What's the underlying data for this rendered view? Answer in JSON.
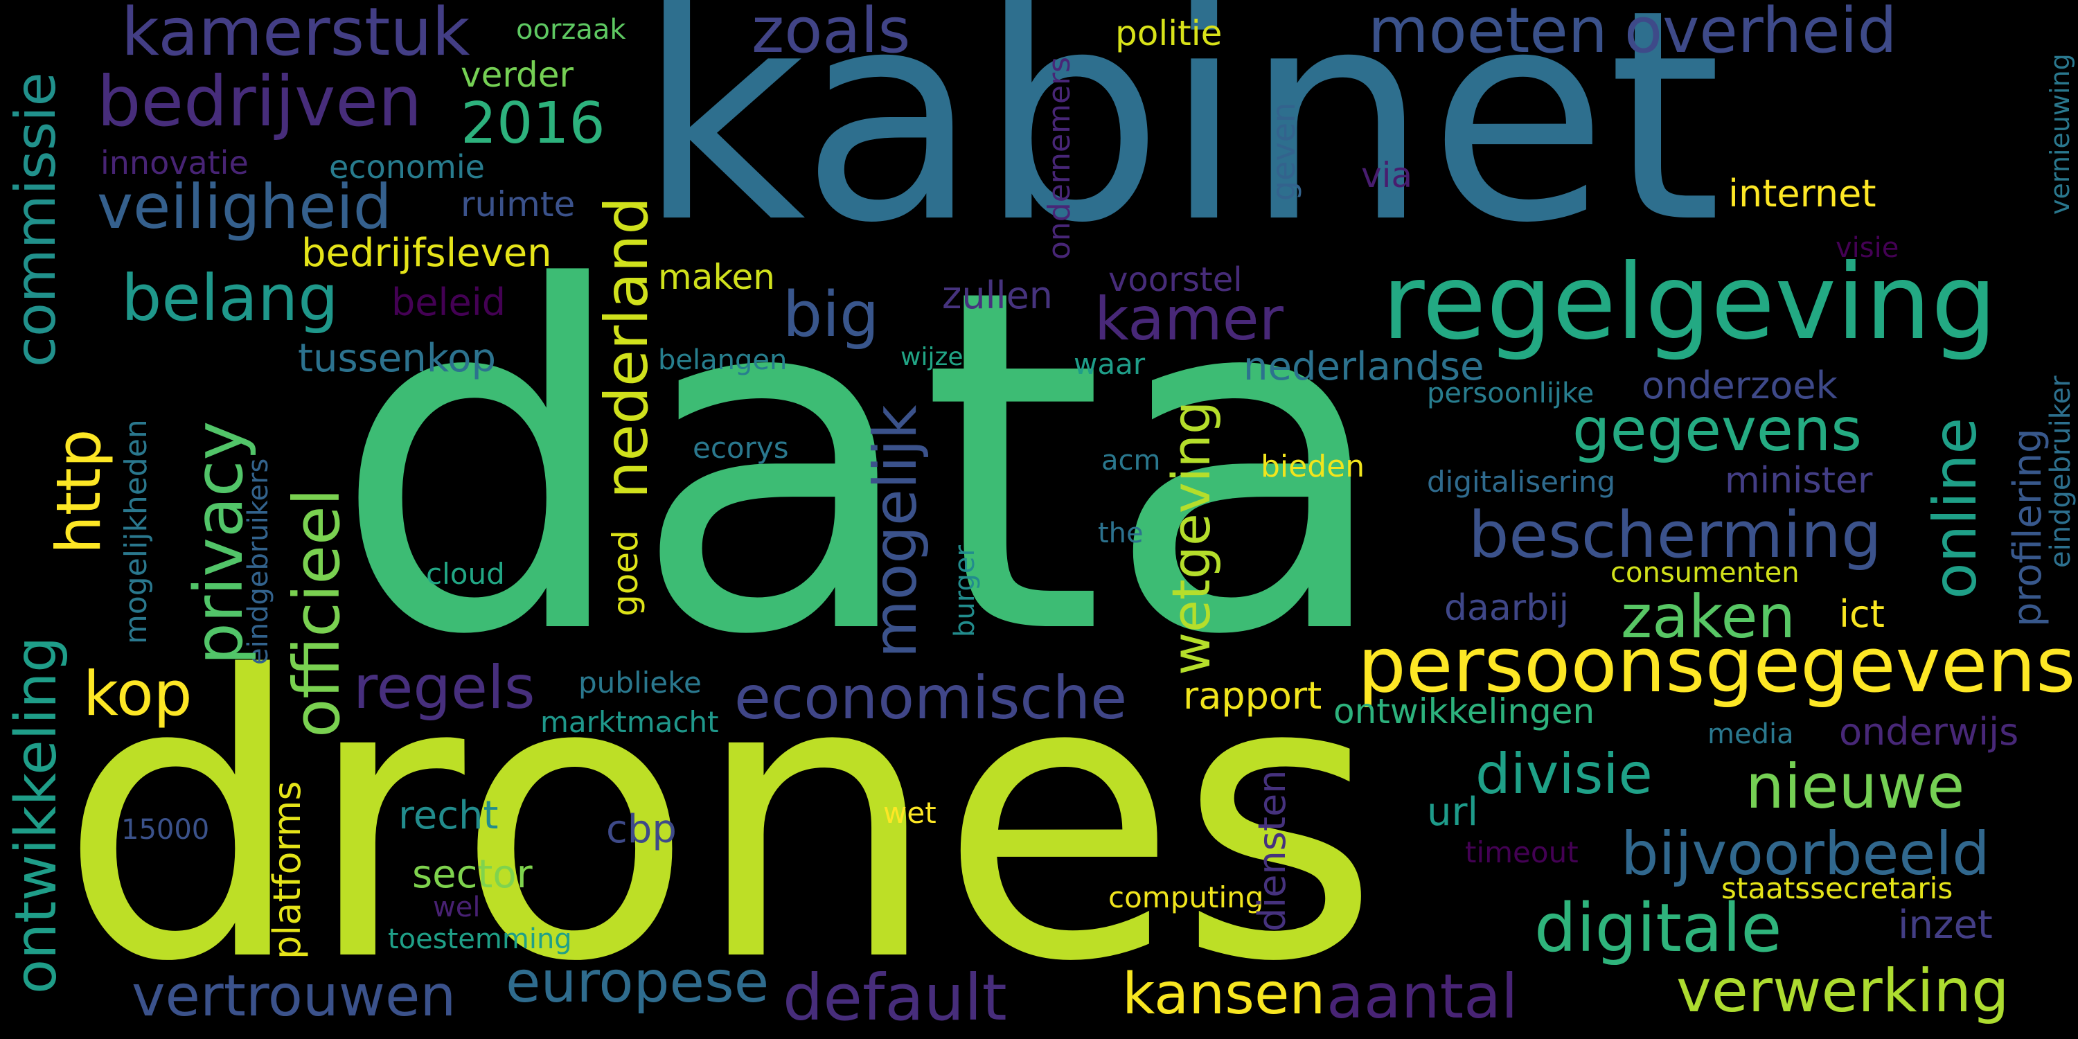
{
  "words": {
    "kabinet": {
      "text": "kabinet",
      "color": "#2e6f8e"
    },
    "data": {
      "text": "data",
      "color": "#3dbc74"
    },
    "drones": {
      "text": "drones",
      "color": "#bddf26"
    },
    "regelgeving": {
      "text": "regelgeving",
      "color": "#23a983"
    },
    "persoonsgegevens": {
      "text": "persoonsgegevens",
      "color": "#fde725"
    },
    "kamerstuk": {
      "text": "kamerstuk",
      "color": "#433e85"
    },
    "bedrijven": {
      "text": "bedrijven",
      "color": "#472d7b"
    },
    "veiligheid": {
      "text": "veiligheid",
      "color": "#35608d"
    },
    "commissie": {
      "text": "commissie",
      "color": "#21918c"
    },
    "moeten": {
      "text": "moeten",
      "color": "#3b528b"
    },
    "overheid": {
      "text": "overheid",
      "color": "#3e4a89"
    },
    "zoals": {
      "text": "zoals",
      "color": "#414487"
    },
    "oorzaak": {
      "text": "oorzaak",
      "color": "#5ec962"
    },
    "politie": {
      "text": "politie",
      "color": "#d8e219"
    },
    "verder": {
      "text": "verder",
      "color": "#75d054"
    },
    "2016": {
      "text": "2016",
      "color": "#2db27d"
    },
    "innovatie": {
      "text": "innovatie",
      "color": "#482475"
    },
    "economie": {
      "text": "economie",
      "color": "#287c8e"
    },
    "ruimte": {
      "text": "ruimte",
      "color": "#3b528b"
    },
    "bedrijfsleven": {
      "text": "bedrijfsleven",
      "color": "#e5e419"
    },
    "belang": {
      "text": "belang",
      "color": "#1f988b"
    },
    "beleid": {
      "text": "beleid",
      "color": "#440154"
    },
    "tussenkop": {
      "text": "tussenkop",
      "color": "#2c728e"
    },
    "big": {
      "text": "big",
      "color": "#39568c"
    },
    "kamer": {
      "text": "kamer",
      "color": "#482878"
    },
    "zullen": {
      "text": "zullen",
      "color": "#46337e"
    },
    "voorstel": {
      "text": "voorstel",
      "color": "#472c7a"
    },
    "maken": {
      "text": "maken",
      "color": "#d0e11c"
    },
    "belangen": {
      "text": "belangen",
      "color": "#277f8e"
    },
    "wijze": {
      "text": "wijze",
      "color": "#21a585"
    },
    "waar": {
      "text": "waar",
      "color": "#1f9e89"
    },
    "nederlandse": {
      "text": "nederlandse",
      "color": "#2c728e"
    },
    "gegevens": {
      "text": "gegevens",
      "color": "#25ab82"
    },
    "onderzoek": {
      "text": "onderzoek",
      "color": "#3e4989"
    },
    "persoonlijke": {
      "text": "persoonlijke",
      "color": "#287d8e"
    },
    "internet": {
      "text": "internet",
      "color": "#fde725"
    },
    "via": {
      "text": "via",
      "color": "#481d6f"
    },
    "visie": {
      "text": "visie",
      "color": "#440154"
    },
    "vernieuwing": {
      "text": "vernieuwing",
      "color": "#2a788e"
    },
    "eindgebruiker": {
      "text": "eindgebruiker",
      "color": "#2d708e"
    },
    "profilering": {
      "text": "profilering",
      "color": "#38588c"
    },
    "online": {
      "text": "online",
      "color": "#1fa088"
    },
    "geven": {
      "text": "geven",
      "color": "#33638d"
    },
    "ondernemers": {
      "text": "ondernemers",
      "color": "#482677"
    },
    "ecorys": {
      "text": "ecorys",
      "color": "#2a788e"
    },
    "acm": {
      "text": "acm",
      "color": "#2a788e"
    },
    "bieden": {
      "text": "bieden",
      "color": "#f1e51d"
    },
    "the": {
      "text": "the",
      "color": "#2c728e"
    },
    "cloud": {
      "text": "cloud",
      "color": "#22a785"
    },
    "burger": {
      "text": "burger",
      "color": "#228c8d"
    },
    "digitalisering": {
      "text": "digitalisering",
      "color": "#2f6b8e"
    },
    "minister": {
      "text": "minister",
      "color": "#433e85"
    },
    "bescherming": {
      "text": "bescherming",
      "color": "#3b528b"
    },
    "consumenten": {
      "text": "consumenten",
      "color": "#d2e21b"
    },
    "daarbij": {
      "text": "daarbij",
      "color": "#3f4788"
    },
    "ict": {
      "text": "ict",
      "color": "#f8e621"
    },
    "zaken": {
      "text": "zaken",
      "color": "#58c765"
    },
    "privacy": {
      "text": "privacy",
      "color": "#52c569"
    },
    "officieel": {
      "text": "officieel",
      "color": "#7ad151"
    },
    "http": {
      "text": "http",
      "color": "#fde725"
    },
    "mogelijkheden": {
      "text": "mogelijkheden",
      "color": "#2a788e"
    },
    "eindgebruikers": {
      "text": "eindgebruikers",
      "color": "#33638d"
    },
    "nederland": {
      "text": "nederland",
      "color": "#d0e11c"
    },
    "mogelijk": {
      "text": "mogelijk",
      "color": "#3b528b"
    },
    "goed": {
      "text": "goed",
      "color": "#dde318"
    },
    "wetgeving": {
      "text": "wetgeving",
      "color": "#b5de2b"
    },
    "ontwikkeling": {
      "text": "ontwikkeling",
      "color": "#1f9e89"
    },
    "kop": {
      "text": "kop",
      "color": "#fde725"
    },
    "regels": {
      "text": "regels",
      "color": "#472f7d"
    },
    "publieke": {
      "text": "publieke",
      "color": "#2a788e"
    },
    "marktmacht": {
      "text": "marktmacht",
      "color": "#1f988b"
    },
    "economische": {
      "text": "economische",
      "color": "#404688"
    },
    "rapport": {
      "text": "rapport",
      "color": "#f1e51d"
    },
    "ontwikkelingen": {
      "text": "ontwikkelingen",
      "color": "#2db27d"
    },
    "media": {
      "text": "media",
      "color": "#2a788e"
    },
    "onderwijs": {
      "text": "onderwijs",
      "color": "#482878"
    },
    "divisie": {
      "text": "divisie",
      "color": "#1fa188"
    },
    "nieuwe": {
      "text": "nieuwe",
      "color": "#75d054"
    },
    "bijvoorbeeld": {
      "text": "bijvoorbeeld",
      "color": "#31688e"
    },
    "url": {
      "text": "url",
      "color": "#1e9b8a"
    },
    "timeout": {
      "text": "timeout",
      "color": "#440154"
    },
    "staatssecretaris": {
      "text": "staatssecretaris",
      "color": "#e5e419"
    },
    "inzet": {
      "text": "inzet",
      "color": "#433e85"
    },
    "digitale": {
      "text": "digitale",
      "color": "#2fb47c"
    },
    "verwerking": {
      "text": "verwerking",
      "color": "#addc30"
    },
    "aantal": {
      "text": "aantal",
      "color": "#482475"
    },
    "kansen": {
      "text": "kansen",
      "color": "#f8e621"
    },
    "default": {
      "text": "default",
      "color": "#472d7b"
    },
    "europese": {
      "text": "europese",
      "color": "#2f6c8e"
    },
    "vertrouwen": {
      "text": "vertrouwen",
      "color": "#3b528b"
    },
    "diensten": {
      "text": "diensten",
      "color": "#46327e"
    },
    "computing": {
      "text": "computing",
      "color": "#f1e51d"
    },
    "wet": {
      "text": "wet",
      "color": "#fde725"
    },
    "cbp": {
      "text": "cbp",
      "color": "#3e4a89"
    },
    "recht": {
      "text": "recht",
      "color": "#228c8d"
    },
    "sector": {
      "text": "sector",
      "color": "#7fd34e"
    },
    "wel": {
      "text": "wel",
      "color": "#482173"
    },
    "toestemming": {
      "text": "toestemming",
      "color": "#1fa088"
    },
    "platforms": {
      "text": "platforms",
      "color": "#e5e419"
    },
    "15000": {
      "text": "15000",
      "color": "#3b528b"
    }
  }
}
